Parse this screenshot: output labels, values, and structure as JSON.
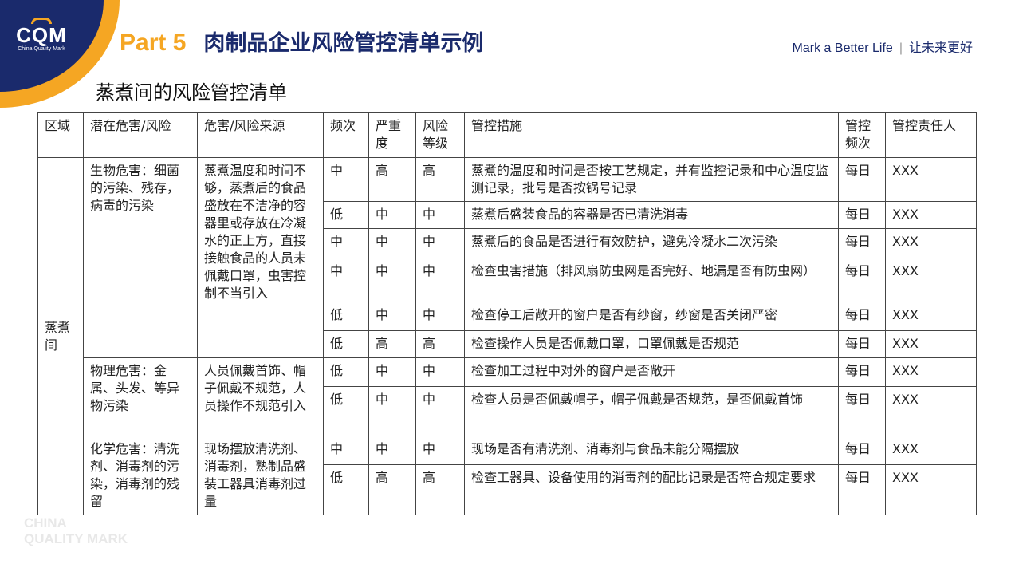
{
  "logo": {
    "text": "CQM",
    "sub": "China Quality Mark"
  },
  "header": {
    "part": "Part 5",
    "title": "肉制品企业风险管控清单示例",
    "slogan_en": "Mark a Better Life",
    "separator": "|",
    "slogan_cn": "让未来更好"
  },
  "subtitle": "蒸煮间的风险管控清单",
  "table": {
    "headers": [
      "区域",
      "潜在危害/风险",
      "危害/风险来源",
      "频次",
      "严重度",
      "风险等级",
      "管控措施",
      "管控频次",
      "管控责任人"
    ],
    "area": "蒸煮间",
    "groups": [
      {
        "hazard": "生物危害：细菌的污染、残存，病毒的污染",
        "source": "蒸煮温度和时间不够，蒸煮后的食品盛放在不洁净的容器里或存放在冷凝水的正上方，直接接触食品的人员未佩戴口罩，虫害控制不当引入",
        "rows": [
          {
            "freq": "中",
            "sev": "高",
            "level": "高",
            "measure": "蒸煮的温度和时间是否按工艺规定，并有监控记录和中心温度监测记录，批号是否按锅号记录",
            "ctrl": "每日",
            "owner": "XXX"
          },
          {
            "freq": "低",
            "sev": "中",
            "level": "中",
            "measure": "蒸煮后盛装食品的容器是否已清洗消毒",
            "ctrl": "每日",
            "owner": "XXX"
          },
          {
            "freq": "中",
            "sev": "中",
            "level": "中",
            "measure": "蒸煮后的食品是否进行有效防护，避免冷凝水二次污染",
            "ctrl": "每日",
            "owner": "XXX"
          },
          {
            "freq": "中",
            "sev": "中",
            "level": "中",
            "measure": "检查虫害措施（排风扇防虫网是否完好、地漏是否有防虫网）",
            "ctrl": "每日",
            "owner": "XXX"
          },
          {
            "freq": "低",
            "sev": "中",
            "level": "中",
            "measure": "检查停工后敞开的窗户是否有纱窗，纱窗是否关闭严密",
            "ctrl": "每日",
            "owner": "XXX"
          },
          {
            "freq": "低",
            "sev": "高",
            "level": "高",
            "measure": "检查操作人员是否佩戴口罩，口罩佩戴是否规范",
            "ctrl": "每日",
            "owner": "XXX"
          }
        ]
      },
      {
        "hazard": "物理危害：金属、头发、等异物污染",
        "source": "人员佩戴首饰、帽子佩戴不规范，人员操作不规范引入",
        "rows": [
          {
            "freq": "低",
            "sev": "中",
            "level": "中",
            "measure": "检查加工过程中对外的窗户是否敞开",
            "ctrl": "每日",
            "owner": "XXX"
          },
          {
            "freq": "低",
            "sev": "中",
            "level": "中",
            "measure": "检查人员是否佩戴帽子，帽子佩戴是否规范，是否佩戴首饰",
            "ctrl": "每日",
            "owner": "XXX"
          }
        ]
      },
      {
        "hazard": "化学危害：清洗剂、消毒剂的污染，消毒剂的残留",
        "source": "现场摆放清洗剂、消毒剂，熟制品盛装工器具消毒剂过量",
        "rows": [
          {
            "freq": "中",
            "sev": "中",
            "level": "中",
            "measure": "现场是否有清洗剂、消毒剂与食品未能分隔摆放",
            "ctrl": "每日",
            "owner": "XXX"
          },
          {
            "freq": "低",
            "sev": "高",
            "level": "高",
            "measure": "检查工器具、设备使用的消毒剂的配比记录是否符合规定要求",
            "ctrl": "每日",
            "owner": "XXX"
          }
        ]
      }
    ]
  },
  "watermark": [
    "CHINA",
    "QUALITY MARK"
  ],
  "colors": {
    "navy": "#1a2a6c",
    "orange": "#f5a623"
  }
}
